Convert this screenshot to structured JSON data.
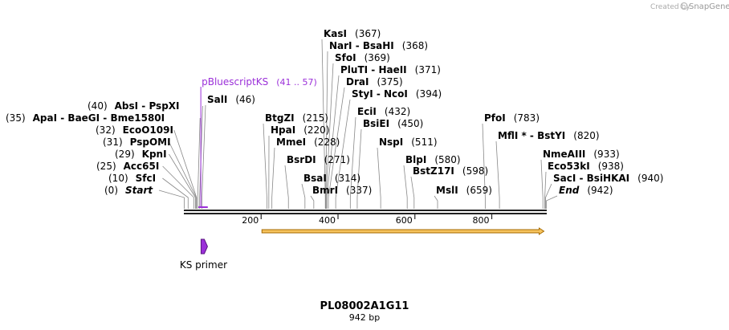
{
  "credit": {
    "prefix": "Created by",
    "brand": "SnapGene"
  },
  "title": "PL08002A1G11",
  "subtitle": "942 bp",
  "colors": {
    "feature": "#9b30d9",
    "orf_fill": "#f6c35d",
    "orf_stroke": "#a66a00",
    "line": "#888888"
  },
  "sequence": {
    "length": 942,
    "start": 0,
    "end": 942
  },
  "ticks": [
    {
      "pos": 200,
      "label": "200"
    },
    {
      "pos": 400,
      "label": "400"
    },
    {
      "pos": 600,
      "label": "600"
    },
    {
      "pos": 800,
      "label": "800"
    }
  ],
  "feature": {
    "name": "pBluescriptKS",
    "range": "(41 .. 57)",
    "start": 41,
    "end": 57
  },
  "primer": {
    "name": "KS primer",
    "pos": 50
  },
  "orf": {
    "start": 200,
    "end": 942
  },
  "sites": [
    {
      "parts": [
        "Start"
      ],
      "pos_text": "(0)",
      "pos": 0,
      "italic": true,
      "side": "left"
    },
    {
      "parts": [
        "SfcI"
      ],
      "pos_text": "(10)",
      "pos": 10,
      "side": "left"
    },
    {
      "parts": [
        "Acc65I"
      ],
      "pos_text": "(25)",
      "pos": 25,
      "side": "left"
    },
    {
      "parts": [
        "KpnI"
      ],
      "pos_text": "(29)",
      "pos": 29,
      "side": "left"
    },
    {
      "parts": [
        "PspOMI"
      ],
      "pos_text": "(31)",
      "pos": 31,
      "side": "left"
    },
    {
      "parts": [
        "EcoO109I"
      ],
      "pos_text": "(32)",
      "pos": 32,
      "side": "left"
    },
    {
      "parts": [
        "ApaI",
        "BaeGI",
        "Bme1580I"
      ],
      "pos_text": "(35)",
      "pos": 35,
      "side": "left"
    },
    {
      "parts": [
        "AbsI",
        "PspXI"
      ],
      "pos_text": "(40)",
      "pos": 40,
      "side": "left"
    },
    {
      "parts": [
        "SalI"
      ],
      "pos_text": "(46)",
      "pos": 46,
      "side": "right"
    },
    {
      "parts": [
        "BtgZI"
      ],
      "pos_text": "(215)",
      "pos": 215,
      "side": "right"
    },
    {
      "parts": [
        "HpaI"
      ],
      "pos_text": "(220)",
      "pos": 220,
      "side": "right"
    },
    {
      "parts": [
        "MmeI"
      ],
      "pos_text": "(228)",
      "pos": 228,
      "side": "right"
    },
    {
      "parts": [
        "BsrDI"
      ],
      "pos_text": "(271)",
      "pos": 271,
      "side": "right"
    },
    {
      "parts": [
        "BsaI"
      ],
      "pos_text": "(314)",
      "pos": 314,
      "side": "right"
    },
    {
      "parts": [
        "BmrI"
      ],
      "pos_text": "(337)",
      "pos": 337,
      "side": "right"
    },
    {
      "parts": [
        "KasI"
      ],
      "pos_text": "(367)",
      "pos": 367,
      "side": "right"
    },
    {
      "parts": [
        "NarI",
        "BsaHI"
      ],
      "pos_text": "(368)",
      "pos": 368,
      "side": "right"
    },
    {
      "parts": [
        "SfoI"
      ],
      "pos_text": "(369)",
      "pos": 369,
      "side": "right"
    },
    {
      "parts": [
        "PluTI",
        "HaeII"
      ],
      "pos_text": "(371)",
      "pos": 371,
      "side": "right"
    },
    {
      "parts": [
        "DraI"
      ],
      "pos_text": "(375)",
      "pos": 375,
      "side": "right"
    },
    {
      "parts": [
        "StyI",
        "NcoI"
      ],
      "pos_text": "(394)",
      "pos": 394,
      "side": "right"
    },
    {
      "parts": [
        "EciI"
      ],
      "pos_text": "(432)",
      "pos": 432,
      "side": "right"
    },
    {
      "parts": [
        "BsiEI"
      ],
      "pos_text": "(450)",
      "pos": 450,
      "side": "right"
    },
    {
      "parts": [
        "NspI"
      ],
      "pos_text": "(511)",
      "pos": 511,
      "side": "right"
    },
    {
      "parts": [
        "BlpI"
      ],
      "pos_text": "(580)",
      "pos": 580,
      "side": "right"
    },
    {
      "parts": [
        "BstZ17I"
      ],
      "pos_text": "(598)",
      "pos": 598,
      "side": "right"
    },
    {
      "parts": [
        "MslI"
      ],
      "pos_text": "(659)",
      "pos": 659,
      "side": "right"
    },
    {
      "parts": [
        "PfoI"
      ],
      "pos_text": "(783)",
      "pos": 783,
      "side": "right"
    },
    {
      "parts": [
        "MflI *",
        "BstYI"
      ],
      "pos_text": "(820)",
      "pos": 820,
      "side": "right"
    },
    {
      "parts": [
        "NmeAIII"
      ],
      "pos_text": "(933)",
      "pos": 933,
      "side": "right"
    },
    {
      "parts": [
        "Eco53kI"
      ],
      "pos_text": "(938)",
      "pos": 938,
      "side": "right"
    },
    {
      "parts": [
        "SacI",
        "BsiHKAI"
      ],
      "pos_text": "(940)",
      "pos": 940,
      "side": "right"
    },
    {
      "parts": [
        "End"
      ],
      "pos_text": "(942)",
      "pos": 942,
      "italic": true,
      "side": "right"
    }
  ]
}
